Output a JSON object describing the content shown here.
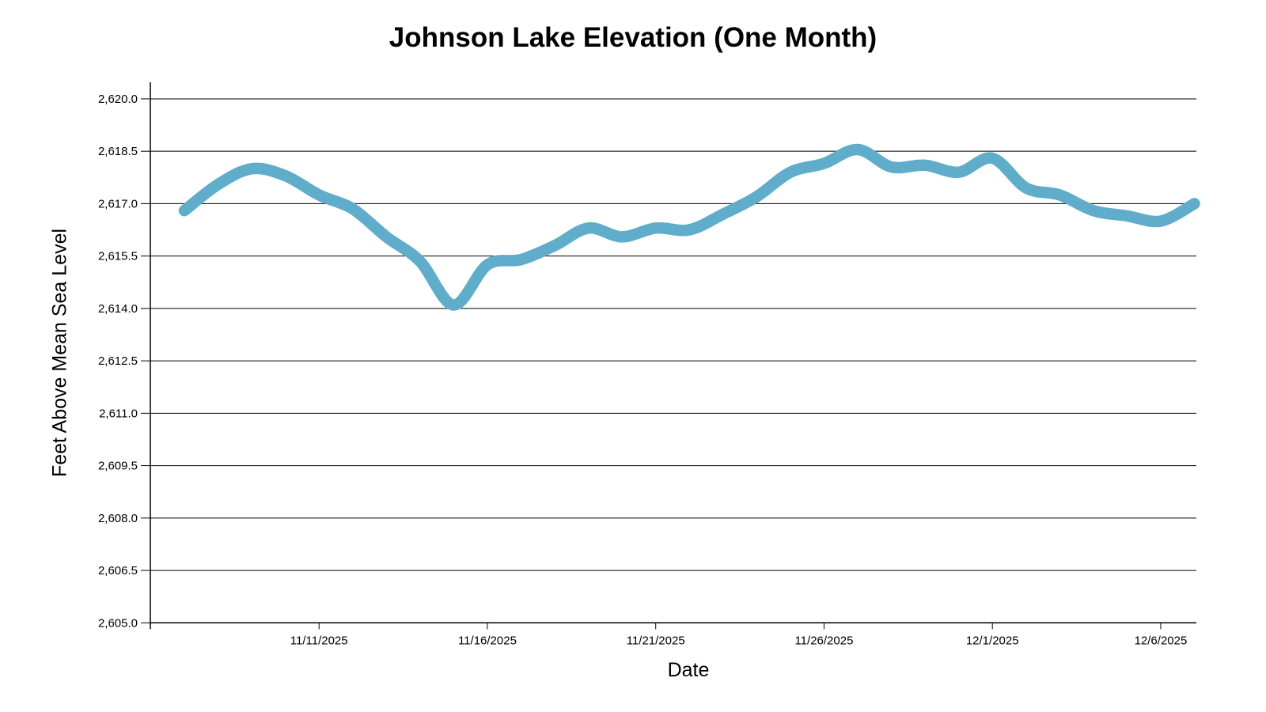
{
  "chart": {
    "title": "Johnson Lake Elevation (One Month)",
    "x_axis_label": "Date",
    "y_axis_label": "Feet Above Mean Sea Level"
  },
  "chart_data": {
    "type": "line",
    "title": "Johnson Lake Elevation (One Month)",
    "xlabel": "Date",
    "ylabel": "Feet Above Mean Sea Level",
    "x": [
      "11/7/2025",
      "11/8/2025",
      "11/9/2025",
      "11/10/2025",
      "11/11/2025",
      "11/12/2025",
      "11/13/2025",
      "11/14/2025",
      "11/15/2025",
      "11/16/2025",
      "11/17/2025",
      "11/18/2025",
      "11/19/2025",
      "11/20/2025",
      "11/21/2025",
      "11/22/2025",
      "11/23/2025",
      "11/24/2025",
      "11/25/2025",
      "11/26/2025",
      "11/27/2025",
      "11/28/2025",
      "11/29/2025",
      "11/30/2025",
      "12/1/2025",
      "12/2/2025",
      "12/3/2025",
      "12/4/2025",
      "12/5/2025",
      "12/6/2025",
      "12/7/2025"
    ],
    "y": [
      2616.8,
      2617.55,
      2618.0,
      2617.8,
      2617.25,
      2616.85,
      2616.05,
      2615.35,
      2614.1,
      2615.25,
      2615.4,
      2615.8,
      2616.3,
      2616.05,
      2616.3,
      2616.25,
      2616.7,
      2617.2,
      2617.9,
      2618.15,
      2618.55,
      2618.05,
      2618.1,
      2617.9,
      2618.3,
      2617.45,
      2617.25,
      2616.8,
      2616.65,
      2616.5,
      2617.0
    ],
    "x_tick_labels": [
      "11/11/2025",
      "11/16/2025",
      "11/21/2025",
      "11/26/2025",
      "12/1/2025",
      "12/6/2025"
    ],
    "x_tick_indices": [
      4,
      9,
      14,
      19,
      24,
      29
    ],
    "y_tick_labels": [
      "2,605.0",
      "2,606.5",
      "2,608.0",
      "2,609.5",
      "2,611.0",
      "2,612.5",
      "2,614.0",
      "2,615.5",
      "2,617.0",
      "2,618.5",
      "2,620.0"
    ],
    "y_tick_values": [
      2605.0,
      2606.5,
      2608.0,
      2609.5,
      2611.0,
      2612.5,
      2614.0,
      2615.5,
      2617.0,
      2618.5,
      2620.0
    ],
    "ylim": [
      2605.0,
      2620.5
    ],
    "grid": true,
    "legend": false,
    "line_color": "#5FADCB",
    "axis_color": "#000000"
  }
}
